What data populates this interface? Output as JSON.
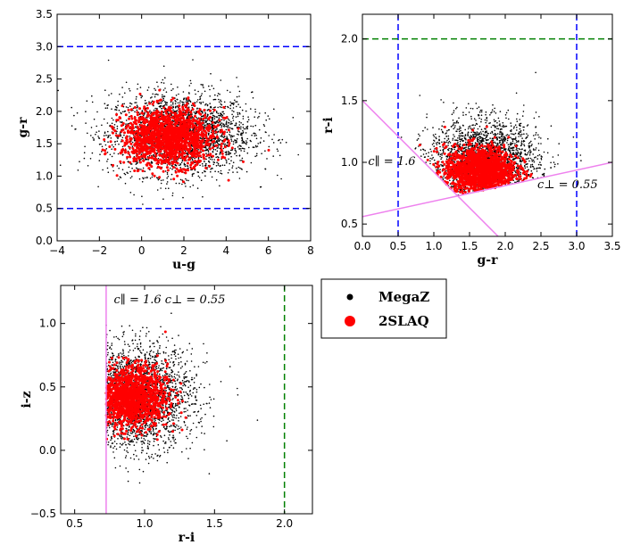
{
  "colors": {
    "megaz": "#000000",
    "slaq": "#ff0000",
    "blue_cut": "#0000ff",
    "green_cut": "#008000",
    "violet_cut": "#ee82ee"
  },
  "legend": {
    "entries": [
      {
        "label": "MegaZ",
        "color": "#000000"
      },
      {
        "label": "2SLAQ",
        "color": "#ff0000"
      }
    ]
  },
  "chart_data": [
    {
      "type": "scatter",
      "xlabel": "u-g",
      "ylabel": "g-r",
      "xlim": [
        -4,
        8
      ],
      "ylim": [
        0.0,
        3.5
      ],
      "xticks": [
        -4,
        -2,
        0,
        2,
        4,
        6,
        8
      ],
      "xtick_labels": [
        "−4",
        "−2",
        "0",
        "2",
        "4",
        "6",
        "8"
      ],
      "yticks": [
        0.0,
        0.5,
        1.0,
        1.5,
        2.0,
        2.5,
        3.0,
        3.5
      ],
      "ytick_labels": [
        "0.0",
        "0.5",
        "1.0",
        "1.5",
        "2.0",
        "2.5",
        "3.0",
        "3.5"
      ],
      "series": [
        {
          "name": "MegaZ",
          "color": "#000000",
          "center": [
            1.8,
            1.65
          ],
          "spread": [
            1.7,
            0.32
          ]
        },
        {
          "name": "2SLAQ",
          "color": "#ff0000",
          "center": [
            1.3,
            1.6
          ],
          "spread": [
            1.1,
            0.22
          ]
        }
      ],
      "cuts": [
        {
          "type": "hline",
          "y": 3.0,
          "color": "#0000ff",
          "dash": true
        },
        {
          "type": "hline",
          "y": 0.5,
          "color": "#0000ff",
          "dash": true
        }
      ],
      "annotations": []
    },
    {
      "type": "scatter",
      "xlabel": "g-r",
      "ylabel": "r-i",
      "xlim": [
        0.0,
        3.5
      ],
      "ylim": [
        0.4,
        2.2
      ],
      "xticks": [
        0.0,
        0.5,
        1.0,
        1.5,
        2.0,
        2.5,
        3.0,
        3.5
      ],
      "xtick_labels": [
        "0.0",
        "0.5",
        "1.0",
        "1.5",
        "2.0",
        "2.5",
        "3.0",
        "3.5"
      ],
      "yticks": [
        0.5,
        1.0,
        1.5,
        2.0
      ],
      "ytick_labels": [
        "0.5",
        "1.0",
        "1.5",
        "2.0"
      ],
      "series": [
        {
          "name": "MegaZ",
          "color": "#000000",
          "center": [
            1.7,
            1.0
          ],
          "spread": [
            0.38,
            0.17
          ]
        },
        {
          "name": "2SLAQ",
          "color": "#ff0000",
          "center": [
            1.65,
            0.93
          ],
          "spread": [
            0.25,
            0.1
          ]
        }
      ],
      "cuts": [
        {
          "type": "vline",
          "x": 0.5,
          "color": "#0000ff",
          "dash": true
        },
        {
          "type": "vline",
          "x": 3.0,
          "color": "#0000ff",
          "dash": true
        },
        {
          "type": "hline",
          "y": 2.0,
          "color": "#008000",
          "dash": true
        },
        {
          "type": "line",
          "x0": 0.0,
          "y0": 1.5,
          "x1": 1.9,
          "y1": 0.4,
          "color": "#ee82ee"
        },
        {
          "type": "line",
          "x0": 0.0,
          "y0": 0.56,
          "x1": 3.5,
          "y1": 1.0,
          "color": "#ee82ee"
        }
      ],
      "annotations": [
        {
          "label": "c∥ = 1.6",
          "x": 0.08,
          "y": 0.98
        },
        {
          "label": "c⊥ = 0.55",
          "x": 2.45,
          "y": 0.79
        }
      ]
    },
    {
      "type": "scatter",
      "xlabel": "r-i",
      "ylabel": "i-z",
      "xlim": [
        0.4,
        2.2
      ],
      "ylim": [
        -0.5,
        1.3
      ],
      "xticks": [
        0.5,
        1.0,
        1.5,
        2.0
      ],
      "xtick_labels": [
        "0.5",
        "1.0",
        "1.5",
        "2.0"
      ],
      "yticks": [
        -0.5,
        0.0,
        0.5,
        1.0
      ],
      "ytick_labels": [
        "−0.5",
        "0.0",
        "0.5",
        "1.0"
      ],
      "series": [
        {
          "name": "MegaZ",
          "color": "#000000",
          "center": [
            0.95,
            0.42
          ],
          "spread": [
            0.2,
            0.2
          ]
        },
        {
          "name": "2SLAQ",
          "color": "#ff0000",
          "center": [
            0.9,
            0.42
          ],
          "spread": [
            0.13,
            0.12
          ]
        }
      ],
      "cuts": [
        {
          "type": "vline",
          "x": 0.725,
          "color": "#ee82ee",
          "dash": false
        },
        {
          "type": "vline",
          "x": 2.0,
          "color": "#008000",
          "dash": true
        }
      ],
      "annotations": [
        {
          "label": "c∥ = 1.6  c⊥ = 0.55",
          "x": 0.78,
          "y": 1.16
        }
      ]
    }
  ]
}
